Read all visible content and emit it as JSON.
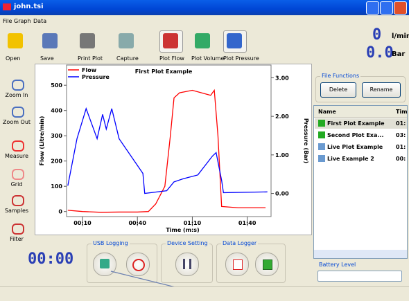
{
  "window": {
    "title": "john.tsi"
  },
  "menu": [
    "File",
    "Graph",
    "Data"
  ],
  "toolbar": [
    "Open",
    "Save",
    "Print Plot",
    "Capture",
    "Plot Flow",
    "Plot Volume",
    "Plot Pressure"
  ],
  "readouts": [
    {
      "value": "0",
      "unit": "l/min"
    },
    {
      "value": "0.0",
      "unit": "Bar"
    }
  ],
  "tools": [
    "Zoom In",
    "Zoom Out",
    "Measure",
    "Grid",
    "Samples",
    "Filter"
  ],
  "plot": {
    "type": "line",
    "title": "First Plot Example",
    "xlabel": "Time (m:s)",
    "ylabel": "Flow (Litre/min)",
    "y2label": "Pressure (Bar)",
    "xlim": [
      1.3,
      113
    ],
    "xticks": [
      {
        "value": 10,
        "label": "00:10"
      },
      {
        "value": 40,
        "label": "00:40"
      },
      {
        "value": 70,
        "label": "01:10"
      },
      {
        "value": 100,
        "label": "01:40"
      }
    ],
    "ylim": [
      -20,
      580
    ],
    "yticks": [
      0,
      100,
      200,
      300,
      400,
      500
    ],
    "y2lim": [
      -0.6,
      3.33
    ],
    "y2ticks": [
      {
        "value": 0,
        "label": "0.00"
      },
      {
        "value": 1,
        "label": "1.00"
      },
      {
        "value": 2,
        "label": "2.00"
      },
      {
        "value": 3,
        "label": "3.00"
      }
    ],
    "grid": false,
    "legend": "top-left",
    "series": [
      {
        "name": "Flow",
        "color": "#ff0000",
        "x": [
          2,
          10,
          20,
          30,
          40,
          46,
          50,
          55,
          58,
          60,
          63,
          70,
          75,
          80,
          82,
          84,
          86,
          95,
          110
        ],
        "values": [
          5,
          0,
          -3,
          -2,
          -2,
          0,
          30,
          100,
          300,
          450,
          470,
          480,
          470,
          460,
          480,
          300,
          20,
          15,
          15
        ]
      },
      {
        "name": "Pressure",
        "color": "#0000ff",
        "axis": "y2",
        "x": [
          2,
          7,
          12,
          18,
          21,
          23,
          26,
          30,
          43,
          44,
          56,
          60,
          65,
          73,
          81,
          83,
          86,
          87,
          111
        ],
        "values": [
          0.2,
          1.42,
          2.2,
          1.42,
          2.05,
          1.67,
          2.2,
          1.42,
          0.52,
          0,
          0.07,
          0.3,
          0.38,
          0.48,
          0.97,
          1.06,
          0.34,
          0.02,
          0.04
        ]
      }
    ]
  },
  "file_functions": {
    "title": "File Functions",
    "buttons": [
      "Delete",
      "Rename"
    ]
  },
  "file_list": {
    "columns": [
      "Name",
      "Tim"
    ],
    "rows": [
      [
        "First Plot Example",
        "01:"
      ],
      [
        "Second Plot Exa...",
        "03:"
      ],
      [
        "Live Plot Example",
        "01:"
      ],
      [
        "Live Example 2",
        "00:"
      ]
    ]
  },
  "battery": {
    "label": "Battery Level"
  },
  "timer": "00:00",
  "groups": [
    "USB Logging",
    "Device Setting",
    "Data Logger"
  ]
}
